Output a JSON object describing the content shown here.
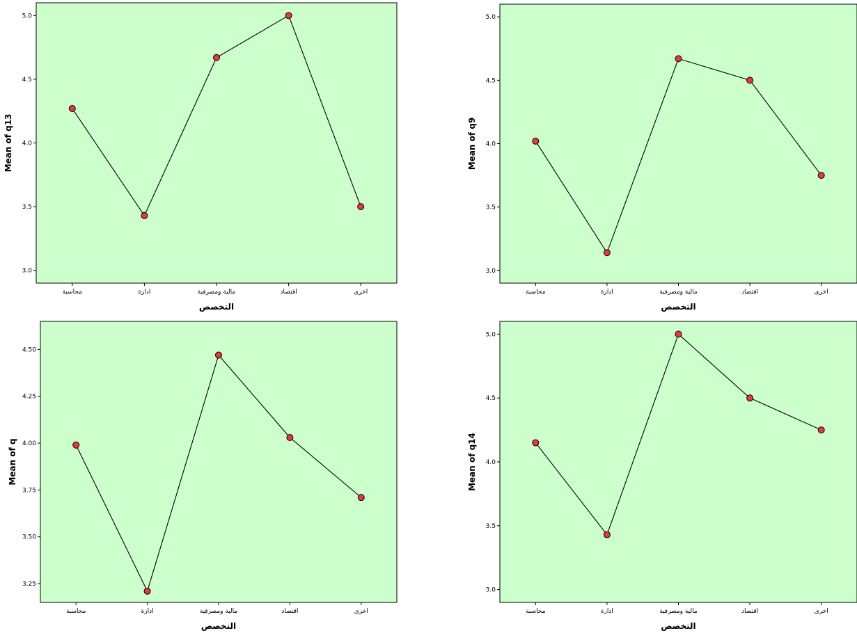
{
  "chart_data": [
    {
      "type": "line",
      "xlabel": "التخصص",
      "ylabel": "Mean of q13",
      "categories": [
        "محاسبة",
        "ادارة",
        "مالية ومصرفية",
        "اقتصاد",
        "اخرى"
      ],
      "values": [
        4.27,
        3.43,
        4.67,
        5.0,
        3.5
      ],
      "ylim": [
        2.9,
        5.1
      ],
      "yticks": [
        "3.0",
        "3.5",
        "4.0",
        "4.5",
        "5.0"
      ],
      "plot_bg": "#ccffcc",
      "marker_color": "#e8393a"
    },
    {
      "type": "line",
      "xlabel": "التخصص",
      "ylabel": "Mean of q9",
      "categories": [
        "محاسبة",
        "ادارة",
        "مالية ومصرفية",
        "اقتصاد",
        "اخرى"
      ],
      "values": [
        4.02,
        3.14,
        4.67,
        4.5,
        3.75
      ],
      "ylim": [
        2.9,
        5.1
      ],
      "yticks": [
        "3.0",
        "3.5",
        "4.0",
        "4.5",
        "5.0"
      ],
      "plot_bg": "#ccffcc",
      "marker_color": "#e8393a"
    },
    {
      "type": "line",
      "xlabel": "التخصص",
      "ylabel": "Mean of q",
      "categories": [
        "محاسبة",
        "ادارة",
        "مالية ومصرفية",
        "اقتصاد",
        "اخرى"
      ],
      "values": [
        3.99,
        3.21,
        4.47,
        4.03,
        3.71
      ],
      "ylim": [
        3.15,
        4.65
      ],
      "yticks": [
        "3.25",
        "3.50",
        "3.75",
        "4.00",
        "4.25",
        "4.50"
      ],
      "plot_bg": "#ccffcc",
      "marker_color": "#e8393a"
    },
    {
      "type": "line",
      "xlabel": "التخصص",
      "ylabel": "Mean of q14",
      "categories": [
        "محاسبة",
        "ادارة",
        "مالية ومصرفية",
        "اقتصاد",
        "اخرى"
      ],
      "values": [
        4.15,
        3.43,
        5.0,
        4.5,
        4.25
      ],
      "ylim": [
        2.9,
        5.1
      ],
      "yticks": [
        "3.0",
        "3.5",
        "4.0",
        "4.5",
        "5.0"
      ],
      "plot_bg": "#ccffcc",
      "marker_color": "#e8393a"
    }
  ]
}
